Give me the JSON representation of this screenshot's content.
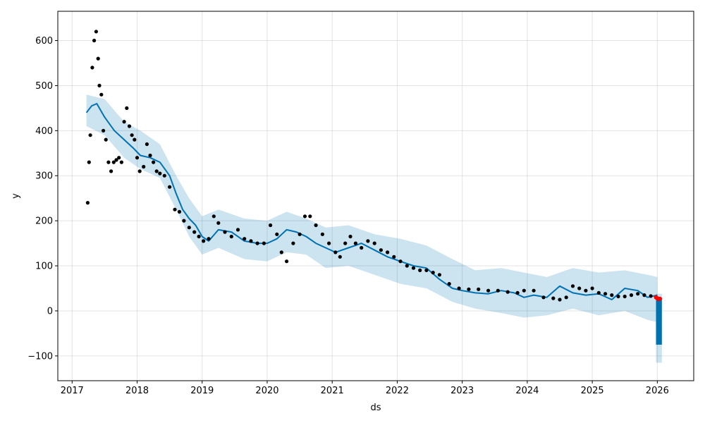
{
  "chart_data": {
    "type": "scatter",
    "title": "",
    "xlabel": "ds",
    "ylabel": "y",
    "xlim": [
      2016.78,
      2026.56
    ],
    "ylim": [
      -155,
      665
    ],
    "x_ticks": [
      2017,
      2018,
      2019,
      2020,
      2021,
      2022,
      2023,
      2024,
      2025,
      2026
    ],
    "x_tick_labels": [
      "2017",
      "2018",
      "2019",
      "2020",
      "2021",
      "2022",
      "2023",
      "2024",
      "2025",
      "2026"
    ],
    "y_ticks": [
      -100,
      0,
      100,
      200,
      300,
      400,
      500,
      600
    ],
    "y_tick_labels": [
      "−100",
      "0",
      "100",
      "200",
      "300",
      "400",
      "500",
      "600"
    ],
    "grid": true,
    "colors": {
      "observed": "#000000",
      "forecast_line": "#0072B2",
      "uncertainty_band": "#0072B2",
      "recent_points": "#ff0000"
    },
    "series": [
      {
        "type": "line",
        "x": [
          2017.22,
          2017.3,
          2017.38,
          2017.5,
          2017.65,
          2017.8,
          2017.95,
          2018.05,
          2018.2,
          2018.35,
          2018.5,
          2018.6,
          2018.7,
          2018.8,
          2018.9,
          2019.0,
          2019.1,
          2019.25,
          2019.45,
          2019.65,
          2019.85,
          2020.0,
          2020.15,
          2020.3,
          2020.45,
          2020.6,
          2020.75,
          2020.9,
          2021.05,
          2021.25,
          2021.45,
          2021.65,
          2021.85,
          2022.05,
          2022.25,
          2022.45,
          2022.65,
          2022.85,
          2023.0,
          2023.2,
          2023.4,
          2023.6,
          2023.8,
          2023.95,
          2024.1,
          2024.3,
          2024.5,
          2024.7,
          2024.9,
          2025.1,
          2025.3,
          2025.5,
          2025.7,
          2025.85,
          2026.0
        ],
        "y": [
          440,
          455,
          460,
          430,
          400,
          380,
          360,
          345,
          340,
          330,
          300,
          260,
          225,
          205,
          190,
          165,
          155,
          180,
          175,
          155,
          150,
          150,
          160,
          180,
          175,
          165,
          150,
          140,
          130,
          140,
          150,
          135,
          120,
          110,
          100,
          95,
          70,
          50,
          45,
          40,
          38,
          45,
          40,
          30,
          35,
          30,
          55,
          40,
          35,
          38,
          25,
          50,
          45,
          30,
          35
        ]
      },
      {
        "type": "band",
        "x": [
          2017.22,
          2017.5,
          2017.8,
          2018.05,
          2018.35,
          2018.6,
          2018.8,
          2019.0,
          2019.25,
          2019.65,
          2020.0,
          2020.3,
          2020.6,
          2020.9,
          2021.25,
          2021.65,
          2022.05,
          2022.45,
          2022.85,
          2023.2,
          2023.6,
          2023.95,
          2024.3,
          2024.7,
          2025.1,
          2025.5,
          2025.85,
          2026.0
        ],
        "y_upper": [
          480,
          470,
          420,
          400,
          370,
          300,
          250,
          210,
          225,
          205,
          200,
          220,
          205,
          185,
          190,
          170,
          160,
          145,
          115,
          90,
          95,
          85,
          75,
          95,
          85,
          90,
          80,
          75
        ],
        "y_lower": [
          410,
          390,
          340,
          315,
          295,
          225,
          165,
          125,
          140,
          115,
          110,
          130,
          125,
          95,
          100,
          80,
          60,
          50,
          20,
          5,
          -5,
          -15,
          -10,
          5,
          -10,
          0,
          -20,
          -25
        ]
      },
      {
        "type": "points",
        "x": [
          2017.24,
          2017.26,
          2017.28,
          2017.31,
          2017.34,
          2017.37,
          2017.4,
          2017.42,
          2017.45,
          2017.48,
          2017.52,
          2017.56,
          2017.6,
          2017.64,
          2017.68,
          2017.72,
          2017.76,
          2017.8,
          2017.84,
          2017.88,
          2017.92,
          2017.96,
          2018.0,
          2018.04,
          2018.1,
          2018.15,
          2018.2,
          2018.25,
          2018.3,
          2018.35,
          2018.42,
          2018.5,
          2018.58,
          2018.65,
          2018.72,
          2018.8,
          2018.88,
          2018.95,
          2019.02,
          2019.1,
          2019.18,
          2019.25,
          2019.35,
          2019.45,
          2019.55,
          2019.65,
          2019.75,
          2019.85,
          2019.95,
          2020.05,
          2020.15,
          2020.22,
          2020.3,
          2020.4,
          2020.5,
          2020.58,
          2020.66,
          2020.75,
          2020.85,
          2020.95,
          2021.05,
          2021.12,
          2021.2,
          2021.28,
          2021.36,
          2021.45,
          2021.55,
          2021.65,
          2021.75,
          2021.85,
          2021.95,
          2022.05,
          2022.15,
          2022.25,
          2022.35,
          2022.45,
          2022.55,
          2022.65,
          2022.8,
          2022.95,
          2023.1,
          2023.25,
          2023.4,
          2023.55,
          2023.7,
          2023.85,
          2023.95,
          2024.1,
          2024.25,
          2024.4,
          2024.5,
          2024.6,
          2024.7,
          2024.8,
          2024.9,
          2025.0,
          2025.1,
          2025.2,
          2025.3,
          2025.4,
          2025.5,
          2025.6,
          2025.7,
          2025.8,
          2025.9
        ],
        "y": [
          240,
          330,
          390,
          540,
          600,
          620,
          560,
          500,
          480,
          400,
          380,
          330,
          310,
          330,
          335,
          340,
          330,
          420,
          450,
          410,
          390,
          380,
          340,
          310,
          320,
          370,
          345,
          330,
          310,
          305,
          300,
          275,
          225,
          220,
          200,
          185,
          175,
          165,
          155,
          160,
          210,
          195,
          175,
          165,
          180,
          160,
          155,
          150,
          150,
          190,
          170,
          130,
          110,
          150,
          170,
          210,
          210,
          190,
          170,
          150,
          130,
          120,
          150,
          165,
          150,
          140,
          155,
          150,
          135,
          130,
          120,
          110,
          100,
          95,
          90,
          90,
          85,
          80,
          60,
          50,
          48,
          48,
          45,
          45,
          42,
          40,
          45,
          45,
          30,
          28,
          25,
          30,
          55,
          50,
          45,
          50,
          40,
          38,
          35,
          32,
          32,
          35,
          38,
          35,
          33
        ]
      },
      {
        "type": "red_points",
        "x": [
          2025.98,
          2026.0,
          2026.02,
          2026.04
        ],
        "y": [
          30,
          28,
          26,
          27
        ]
      },
      {
        "type": "forecast_block",
        "x": [
          2025.98,
          2026.07
        ],
        "y": [
          -75,
          28
        ],
        "band": [
          -115,
          38
        ]
      }
    ]
  }
}
